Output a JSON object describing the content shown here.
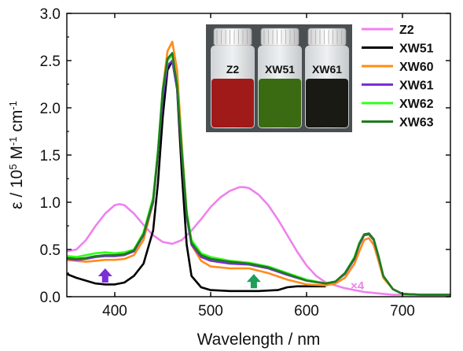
{
  "chart_data": {
    "type": "line",
    "xlabel": "Wavelength / nm",
    "ylabel": "ε / 10⁵ M⁻¹ cm⁻¹",
    "ylabel_parts": {
      "base": "ε / 10",
      "sup1": "5",
      "mid": " M",
      "sup2": "-1",
      "mid2": " cm",
      "sup3": "-1"
    },
    "xlim": [
      350,
      750
    ],
    "ylim": [
      0,
      3.0
    ],
    "xticks": [
      400,
      500,
      600,
      700
    ],
    "yticks": [
      0.0,
      0.5,
      1.0,
      1.5,
      2.0,
      2.5,
      3.0
    ],
    "ytick_labels": [
      "0.0",
      "0.5",
      "1.0",
      "1.5",
      "2.0",
      "2.5",
      "3.0"
    ],
    "legend_position": "top-right",
    "multiplier_label": "×4",
    "series": [
      {
        "name": "Z2",
        "color": "#ee82ee",
        "x": [
          350,
          360,
          370,
          380,
          390,
          400,
          405,
          410,
          420,
          430,
          440,
          450,
          460,
          470,
          480,
          490,
          500,
          510,
          520,
          530,
          535,
          540,
          550,
          560,
          570,
          580,
          590,
          600,
          610,
          620,
          630,
          640,
          650,
          660,
          670,
          680,
          690,
          700,
          720,
          750
        ],
        "y": [
          0.48,
          0.5,
          0.6,
          0.75,
          0.88,
          0.97,
          0.98,
          0.97,
          0.88,
          0.76,
          0.65,
          0.58,
          0.56,
          0.6,
          0.7,
          0.82,
          0.95,
          1.05,
          1.12,
          1.16,
          1.16,
          1.15,
          1.08,
          0.97,
          0.82,
          0.65,
          0.48,
          0.33,
          0.22,
          0.15,
          0.12,
          0.09,
          0.07,
          0.05,
          0.04,
          0.03,
          0.02,
          0.02,
          0.02,
          0.02
        ]
      },
      {
        "name": "XW51",
        "color": "#000000",
        "x": [
          350,
          360,
          370,
          380,
          390,
          400,
          410,
          420,
          430,
          440,
          445,
          450,
          455,
          460,
          465,
          470,
          475,
          480,
          490,
          500,
          520,
          550,
          570,
          580,
          590,
          600,
          610,
          620
        ],
        "y": [
          0.24,
          0.2,
          0.17,
          0.14,
          0.13,
          0.13,
          0.15,
          0.22,
          0.35,
          0.7,
          1.2,
          1.9,
          2.4,
          2.5,
          2.2,
          1.3,
          0.55,
          0.22,
          0.1,
          0.07,
          0.06,
          0.06,
          0.07,
          0.1,
          0.11,
          0.11,
          0.11,
          0.11
        ]
      },
      {
        "name": "XW60",
        "color": "#ff8c1a",
        "x": [
          350,
          360,
          370,
          380,
          390,
          400,
          410,
          420,
          430,
          440,
          445,
          450,
          455,
          460,
          465,
          470,
          475,
          480,
          490,
          500,
          520,
          540,
          560,
          580,
          600,
          620,
          630,
          640,
          650,
          655,
          660,
          665,
          670,
          675,
          680,
          690,
          700,
          720,
          750
        ],
        "y": [
          0.39,
          0.38,
          0.37,
          0.38,
          0.39,
          0.39,
          0.4,
          0.44,
          0.6,
          1.0,
          1.5,
          2.2,
          2.6,
          2.7,
          2.4,
          1.6,
          0.9,
          0.55,
          0.38,
          0.32,
          0.3,
          0.3,
          0.25,
          0.18,
          0.13,
          0.12,
          0.14,
          0.2,
          0.35,
          0.48,
          0.6,
          0.62,
          0.55,
          0.38,
          0.2,
          0.08,
          0.03,
          0.02,
          0.02
        ]
      },
      {
        "name": "XW61",
        "color": "#7b2fd6",
        "x": [
          350,
          360,
          370,
          380,
          390,
          400,
          410,
          420,
          430,
          440,
          445,
          450,
          455,
          460,
          465,
          470,
          475,
          480,
          490,
          500,
          520,
          540,
          560,
          580,
          600,
          620,
          630,
          640,
          650,
          655,
          660,
          665,
          670,
          675,
          680,
          690,
          700,
          720,
          750
        ],
        "y": [
          0.4,
          0.39,
          0.4,
          0.42,
          0.43,
          0.43,
          0.44,
          0.48,
          0.65,
          1.0,
          1.5,
          2.1,
          2.45,
          2.5,
          2.2,
          1.5,
          0.85,
          0.55,
          0.42,
          0.38,
          0.35,
          0.34,
          0.3,
          0.23,
          0.17,
          0.14,
          0.16,
          0.24,
          0.4,
          0.55,
          0.65,
          0.66,
          0.6,
          0.42,
          0.22,
          0.08,
          0.03,
          0.02,
          0.02
        ]
      },
      {
        "name": "XW62",
        "color": "#33ff1a",
        "x": [
          350,
          360,
          370,
          380,
          390,
          400,
          410,
          420,
          430,
          440,
          445,
          450,
          455,
          460,
          465,
          470,
          475,
          480,
          490,
          500,
          520,
          540,
          560,
          580,
          600,
          620,
          630,
          640,
          650,
          655,
          660,
          665,
          670,
          675,
          680,
          690,
          700,
          720,
          750
        ],
        "y": [
          0.43,
          0.42,
          0.44,
          0.46,
          0.47,
          0.46,
          0.47,
          0.5,
          0.68,
          1.05,
          1.55,
          2.2,
          2.5,
          2.56,
          2.25,
          1.55,
          0.9,
          0.6,
          0.46,
          0.42,
          0.38,
          0.36,
          0.32,
          0.25,
          0.18,
          0.14,
          0.16,
          0.25,
          0.42,
          0.57,
          0.66,
          0.67,
          0.61,
          0.43,
          0.22,
          0.08,
          0.03,
          0.02,
          0.02
        ]
      },
      {
        "name": "XW63",
        "color": "#1f7a1f",
        "x": [
          350,
          360,
          370,
          380,
          390,
          400,
          410,
          420,
          430,
          440,
          445,
          450,
          455,
          460,
          465,
          470,
          475,
          480,
          490,
          500,
          520,
          540,
          560,
          580,
          600,
          620,
          630,
          640,
          650,
          655,
          660,
          665,
          670,
          675,
          680,
          690,
          700,
          720,
          750
        ],
        "y": [
          0.41,
          0.4,
          0.41,
          0.43,
          0.44,
          0.44,
          0.45,
          0.49,
          0.66,
          1.02,
          1.52,
          2.18,
          2.52,
          2.58,
          2.23,
          1.52,
          0.87,
          0.57,
          0.44,
          0.4,
          0.37,
          0.35,
          0.31,
          0.24,
          0.17,
          0.14,
          0.16,
          0.25,
          0.41,
          0.56,
          0.66,
          0.67,
          0.61,
          0.43,
          0.22,
          0.08,
          0.03,
          0.02,
          0.02
        ]
      }
    ],
    "arrows": [
      {
        "x": 390,
        "y": 0.2,
        "direction": "up",
        "color": "#7b2fd6"
      },
      {
        "x": 545,
        "y": 0.14,
        "direction": "up",
        "color": "#1f9e5a"
      }
    ]
  },
  "inset": {
    "vials": [
      {
        "label": "Z2",
        "liquid_color": "#a01a1a"
      },
      {
        "label": "XW51",
        "liquid_color": "#3a6b12"
      },
      {
        "label": "XW61",
        "liquid_color": "#1a1a14"
      }
    ]
  }
}
